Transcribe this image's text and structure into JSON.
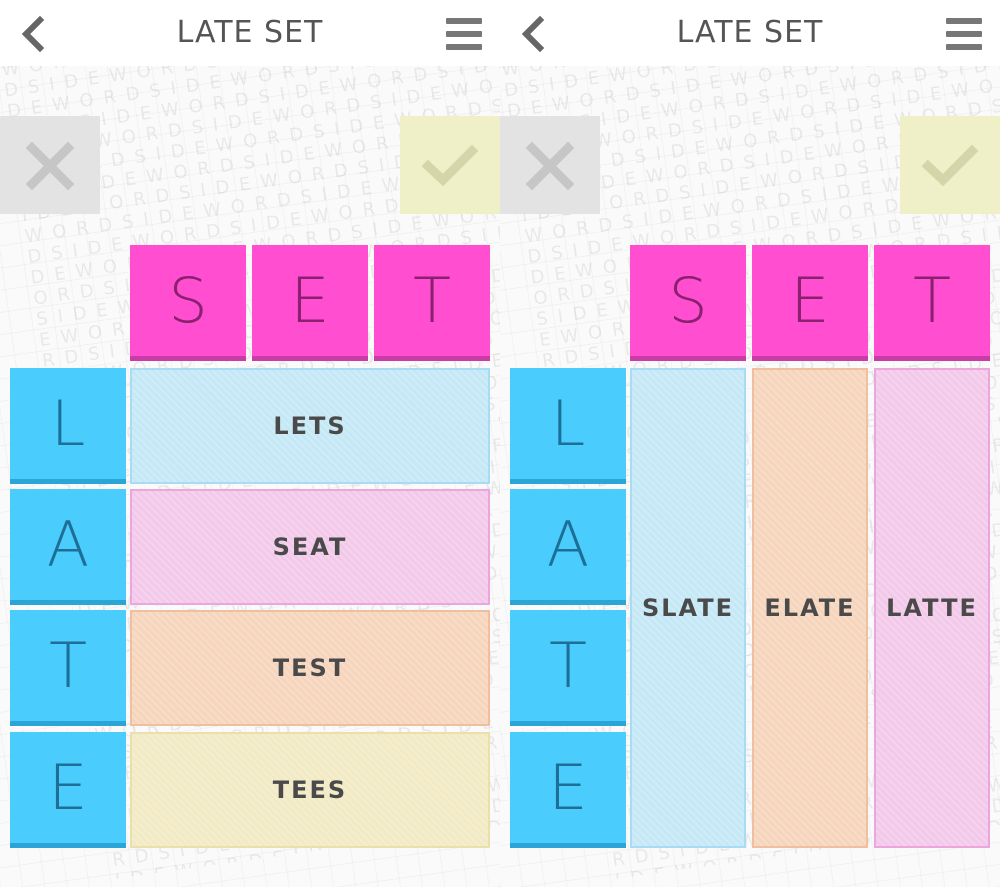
{
  "colors": {
    "top_tile": "#ff4fd0",
    "side_tile": "#4acdfd",
    "reject_button": "#e3e3e3",
    "accept_button": "#eff0c8"
  },
  "background_watermark": "WORDSIDEWORDSIDEWORDSIDEWORDSIDE",
  "panels": [
    {
      "title": "LATE SET",
      "back_icon": "chevron-left-icon",
      "menu_icon": "hamburger-menu-icon",
      "reject_icon": "x-icon",
      "accept_icon": "checkmark-icon",
      "top_word_letters": [
        "S",
        "E",
        "T"
      ],
      "side_word_letters": [
        "L",
        "A",
        "T",
        "E"
      ],
      "answers_orientation": "rows",
      "answers": [
        {
          "word": "LETS",
          "color": "#c5e8f6",
          "border": "#a9dcf2"
        },
        {
          "word": "SEAT",
          "color": "#f3c9ea",
          "border": "#eaa6dd"
        },
        {
          "word": "TEST",
          "color": "#f6d5bd",
          "border": "#efbf9f"
        },
        {
          "word": "TEES",
          "color": "#f2eac5",
          "border": "#ebdfab"
        }
      ]
    },
    {
      "title": "LATE SET",
      "back_icon": "chevron-left-icon",
      "menu_icon": "hamburger-menu-icon",
      "reject_icon": "x-icon",
      "accept_icon": "checkmark-icon",
      "top_word_letters": [
        "S",
        "E",
        "T"
      ],
      "side_word_letters": [
        "L",
        "A",
        "T",
        "E"
      ],
      "answers_orientation": "columns",
      "answers": [
        {
          "word": "SLATE",
          "color": "#c5e8f6",
          "border": "#a9dcf2"
        },
        {
          "word": "ELATE",
          "color": "#f6d5bd",
          "border": "#efbf9f"
        },
        {
          "word": "LATTE",
          "color": "#f3c9ea",
          "border": "#eaa6dd"
        }
      ]
    }
  ]
}
